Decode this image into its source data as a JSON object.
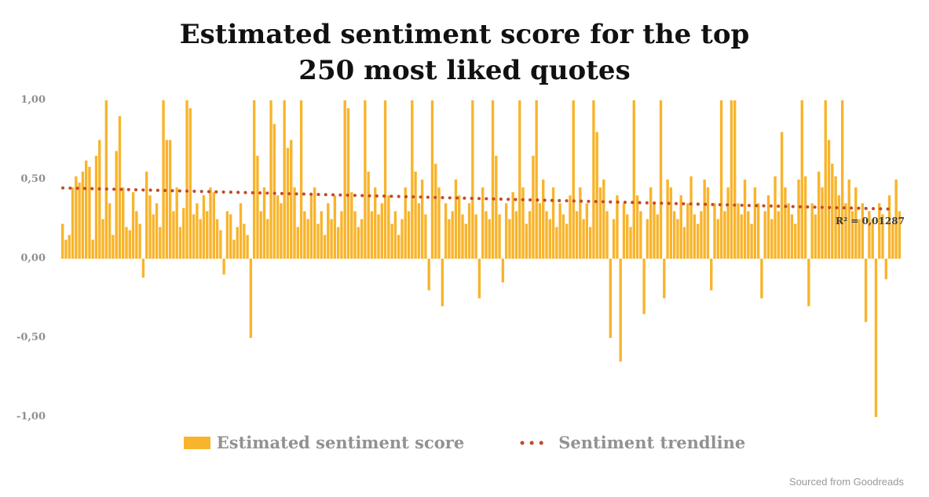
{
  "title": "Estimated sentiment score for the top 250 most liked quotes",
  "footer": {
    "source_note": "Sourced from Goodreads"
  },
  "chart_data": {
    "type": "bar",
    "title": "Estimated sentiment score for the top 250 most liked quotes",
    "xlabel": "",
    "ylabel": "",
    "ylim": [
      -1,
      1
    ],
    "y_tick_labels": [
      "1,00",
      "0,50",
      "0,00",
      "-0,50",
      "-1,00"
    ],
    "y_tick_values": [
      1.0,
      0.5,
      0.0,
      -0.5,
      -1.0
    ],
    "decimal_style": "comma",
    "grid": "off",
    "legend_position": "bottom",
    "bar_color": "#F8B42C",
    "trend_color": "#C14A2B",
    "legend": [
      {
        "label": "Estimated sentiment score",
        "swatch": "bar"
      },
      {
        "label": "Sentiment trendline",
        "swatch": "dotted-line"
      }
    ],
    "annotation": {
      "r_squared": "R² = 0,01287"
    },
    "trendline": {
      "type": "linear-dotted",
      "start": 0.447,
      "end": 0.313
    },
    "series_name": "Estimated sentiment score",
    "values": [
      0.22,
      0.12,
      0.15,
      0.45,
      0.52,
      0.48,
      0.55,
      0.62,
      0.58,
      0.12,
      0.65,
      0.75,
      0.25,
      1.0,
      0.35,
      0.15,
      0.68,
      0.9,
      0.45,
      0.2,
      0.18,
      0.42,
      0.3,
      0.22,
      -0.12,
      0.55,
      0.4,
      0.28,
      0.35,
      0.2,
      1.0,
      0.75,
      0.75,
      0.3,
      0.45,
      0.2,
      0.32,
      1.0,
      0.95,
      0.28,
      0.35,
      0.25,
      0.4,
      0.3,
      0.45,
      0.42,
      0.25,
      0.18,
      -0.1,
      0.3,
      0.28,
      0.12,
      0.2,
      0.35,
      0.22,
      0.15,
      -0.5,
      1.0,
      0.65,
      0.3,
      0.45,
      0.25,
      1.0,
      0.85,
      0.4,
      0.35,
      1.0,
      0.7,
      0.75,
      0.45,
      0.2,
      1.0,
      0.3,
      0.25,
      0.4,
      0.45,
      0.22,
      0.3,
      0.15,
      0.35,
      0.25,
      0.4,
      0.2,
      0.3,
      1.0,
      0.95,
      0.42,
      0.3,
      0.2,
      0.25,
      1.0,
      0.55,
      0.3,
      0.45,
      0.28,
      0.35,
      1.0,
      0.4,
      0.22,
      0.3,
      0.15,
      0.25,
      0.45,
      0.3,
      1.0,
      0.55,
      0.35,
      0.5,
      0.28,
      -0.2,
      1.0,
      0.6,
      0.45,
      -0.3,
      0.35,
      0.25,
      0.3,
      0.5,
      0.4,
      0.28,
      0.22,
      0.35,
      1.0,
      0.28,
      -0.25,
      0.45,
      0.3,
      0.25,
      1.0,
      0.65,
      0.28,
      -0.15,
      0.35,
      0.25,
      0.42,
      0.3,
      1.0,
      0.45,
      0.22,
      0.3,
      0.65,
      1.0,
      0.35,
      0.5,
      0.3,
      0.25,
      0.45,
      0.2,
      0.35,
      0.28,
      0.22,
      0.4,
      1.0,
      0.3,
      0.45,
      0.25,
      0.35,
      0.2,
      1.0,
      0.8,
      0.45,
      0.5,
      0.3,
      -0.5,
      0.25,
      0.4,
      -0.65,
      0.35,
      0.28,
      0.2,
      1.0,
      0.4,
      0.3,
      -0.35,
      0.25,
      0.45,
      0.35,
      0.28,
      1.0,
      -0.25,
      0.5,
      0.45,
      0.3,
      0.25,
      0.4,
      0.2,
      0.35,
      0.52,
      0.28,
      0.22,
      0.3,
      0.5,
      0.45,
      -0.2,
      0.35,
      0.25,
      1.0,
      0.3,
      0.45,
      1.0,
      1.0,
      0.35,
      0.28,
      0.5,
      0.3,
      0.22,
      0.45,
      0.35,
      -0.25,
      0.3,
      0.4,
      0.25,
      0.52,
      0.3,
      0.8,
      0.45,
      0.35,
      0.28,
      0.22,
      0.5,
      1.0,
      0.52,
      -0.3,
      0.35,
      0.28,
      0.55,
      0.45,
      1.0,
      0.75,
      0.6,
      0.52,
      0.4,
      1.0,
      0.35,
      0.5,
      0.3,
      0.45,
      0.25,
      0.35,
      -0.4,
      0.3,
      0.25,
      -1.0,
      0.35,
      0.28,
      -0.13,
      0.4,
      0.22,
      0.5,
      0.3
    ]
  }
}
